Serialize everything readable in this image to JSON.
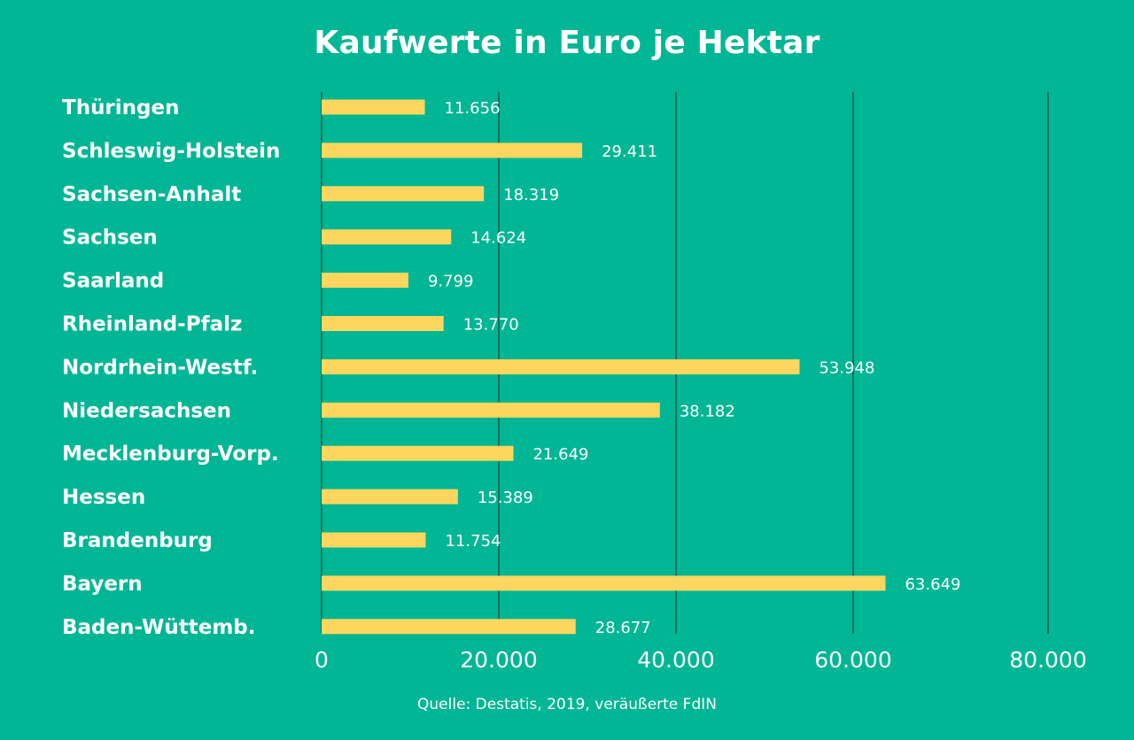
{
  "chart_data": {
    "type": "bar",
    "orientation": "horizontal",
    "title": "Kaufwerte in Euro je Hektar",
    "categories": [
      "Thüringen",
      "Schleswig-Holstein",
      "Sachsen-Anhalt",
      "Sachsen",
      "Saarland",
      "Rheinland-Pfalz",
      "Nordrhein-Westf.",
      "Niedersachsen",
      "Mecklenburg-Vorp.",
      "Hessen",
      "Brandenburg",
      "Bayern",
      "Baden-Wüttemb."
    ],
    "values": [
      11656,
      29411,
      18319,
      14624,
      9799,
      13770,
      53948,
      38182,
      21649,
      15389,
      11754,
      63649,
      28677
    ],
    "value_labels": [
      "11.656",
      "29.411",
      "18.319",
      "14.624",
      "9.799",
      "13.770",
      "53.948",
      "38.182",
      "21.649",
      "15.389",
      "11.754",
      "63.649",
      "28.677"
    ],
    "xlim": [
      0,
      82000
    ],
    "ticks": [
      0,
      20000,
      40000,
      60000,
      80000
    ],
    "tick_labels": [
      "0",
      "20.000",
      "40.000",
      "60.000",
      "80.000"
    ],
    "grid": true,
    "source": "Quelle: Destatis, 2019, veräußerte FdIN"
  },
  "colors": {
    "background": "#00b694",
    "bar": "#fcd65e",
    "grid": "#1d4a3e",
    "text": "#ffffff"
  }
}
